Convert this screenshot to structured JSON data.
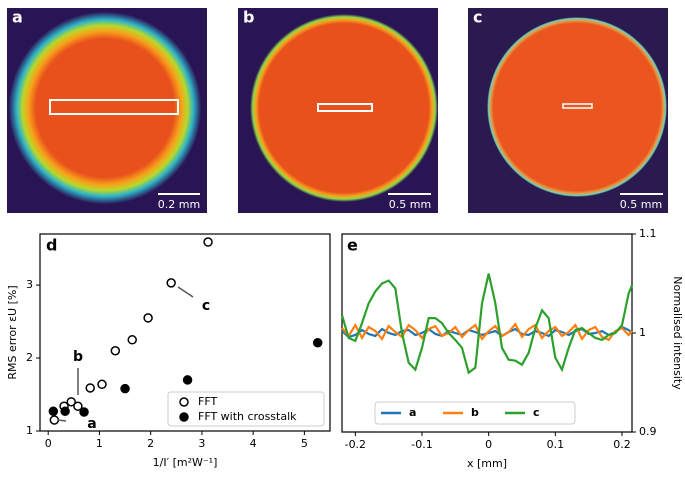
{
  "image_panels": [
    {
      "label": "a",
      "scale_bar": "0.2 mm"
    },
    {
      "label": "b",
      "scale_bar": "0.5 mm"
    },
    {
      "label": "c",
      "scale_bar": "0.5 mm"
    }
  ],
  "chart_data": [
    {
      "type": "scatter",
      "label": "d",
      "ylabel": "RMS error εU [%]",
      "xlabel": "1/I′ [m²W⁻¹]",
      "xlim": [
        -0.16,
        5.5
      ],
      "ylim": [
        1,
        3.7
      ],
      "xticks": [
        0,
        1,
        2,
        3,
        4,
        5
      ],
      "yticks": [
        1,
        2,
        3
      ],
      "legend": "lower right",
      "annotations": [
        "a",
        "b",
        "c"
      ],
      "series": [
        {
          "name": "FFT",
          "color": "#000000",
          "marker": "open",
          "x": [
            0.12,
            0.31,
            0.45,
            0.58,
            0.82,
            1.05,
            1.31,
            1.64,
            1.95,
            2.4,
            3.12
          ],
          "values": [
            1.15,
            1.34,
            1.4,
            1.34,
            1.59,
            1.64,
            2.1,
            2.25,
            2.55,
            3.03,
            3.59
          ]
        },
        {
          "name": "FFT with crosstalk",
          "color": "#000000",
          "marker": "filled",
          "x": [
            0.1,
            0.33,
            0.7,
            1.5,
            2.72,
            5.26
          ],
          "values": [
            1.27,
            1.27,
            1.26,
            1.58,
            1.7,
            2.21
          ]
        }
      ]
    },
    {
      "type": "line",
      "label": "e",
      "ylabel": "Normalised intensity",
      "xlabel": "x [mm]",
      "xlim": [
        -0.22,
        0.215
      ],
      "ylim": [
        0.9,
        1.1
      ],
      "xticks": [
        -0.2,
        -0.1,
        0,
        0.1,
        0.2
      ],
      "yticks": [
        0.9,
        1,
        1.1
      ],
      "legend": "lower center",
      "x": [
        -0.22,
        -0.21,
        -0.2,
        -0.19,
        -0.18,
        -0.17,
        -0.16,
        -0.15,
        -0.14,
        -0.13,
        -0.12,
        -0.11,
        -0.1,
        -0.09,
        -0.08,
        -0.07,
        -0.06,
        -0.05,
        -0.04,
        -0.03,
        -0.02,
        -0.01,
        0,
        0.01,
        0.02,
        0.03,
        0.04,
        0.05,
        0.06,
        0.07,
        0.08,
        0.09,
        0.1,
        0.11,
        0.12,
        0.13,
        0.14,
        0.15,
        0.16,
        0.17,
        0.18,
        0.19,
        0.2,
        0.21,
        0.215
      ],
      "series": [
        {
          "name": "a",
          "color": "#1f77b4",
          "values": [
            1.002,
            0.996,
            0.998,
            1.003,
            0.999,
            0.997,
            1.004,
            1.0,
            0.998,
            1.002,
            1.003,
            0.998,
            1.0,
            1.004,
            0.999,
            0.997,
            1.002,
            1.0,
            0.998,
            1.003,
            1.001,
            0.998,
            1.0,
            1.002,
            0.997,
            1.001,
            1.004,
            0.999,
            0.998,
            1.002,
            1.0,
            0.997,
            1.003,
            1.001,
            0.998,
            1.002,
            1.004,
            0.999,
            1.0,
            1.002,
            0.998,
            1.001,
            1.006,
            1.003,
            1.0
          ]
        },
        {
          "name": "b",
          "color": "#ff7f0e",
          "values": [
            1.005,
            0.997,
            1.008,
            0.995,
            1.006,
            1.002,
            0.994,
            1.007,
            1.001,
            0.996,
            1.008,
            1.003,
            0.995,
            1.004,
            1.007,
            0.997,
            1.0,
            1.006,
            0.996,
            1.003,
            1.008,
            0.994,
            1.002,
            1.007,
            0.997,
            1.001,
            1.009,
            0.996,
            1.004,
            1.008,
            0.995,
            1.002,
            1.006,
            0.997,
            1.001,
            1.008,
            0.994,
            1.003,
            1.006,
            0.996,
            0.993,
            1.002,
            1.005,
            0.998,
            1.002
          ]
        },
        {
          "name": "c",
          "color": "#2ca02c",
          "values": [
            1.018,
            0.995,
            0.992,
            1.01,
            1.03,
            1.042,
            1.05,
            1.053,
            1.045,
            1.0,
            0.97,
            0.963,
            0.985,
            1.015,
            1.015,
            1.01,
            1.0,
            0.993,
            0.985,
            0.96,
            0.965,
            1.03,
            1.06,
            1.03,
            0.985,
            0.973,
            0.972,
            0.968,
            0.98,
            1.005,
            1.023,
            1.015,
            0.975,
            0.963,
            0.985,
            1.003,
            1.005,
            1.0,
            0.995,
            0.993,
            0.998,
            1.0,
            1.008,
            1.04,
            1.048
          ]
        }
      ]
    }
  ]
}
